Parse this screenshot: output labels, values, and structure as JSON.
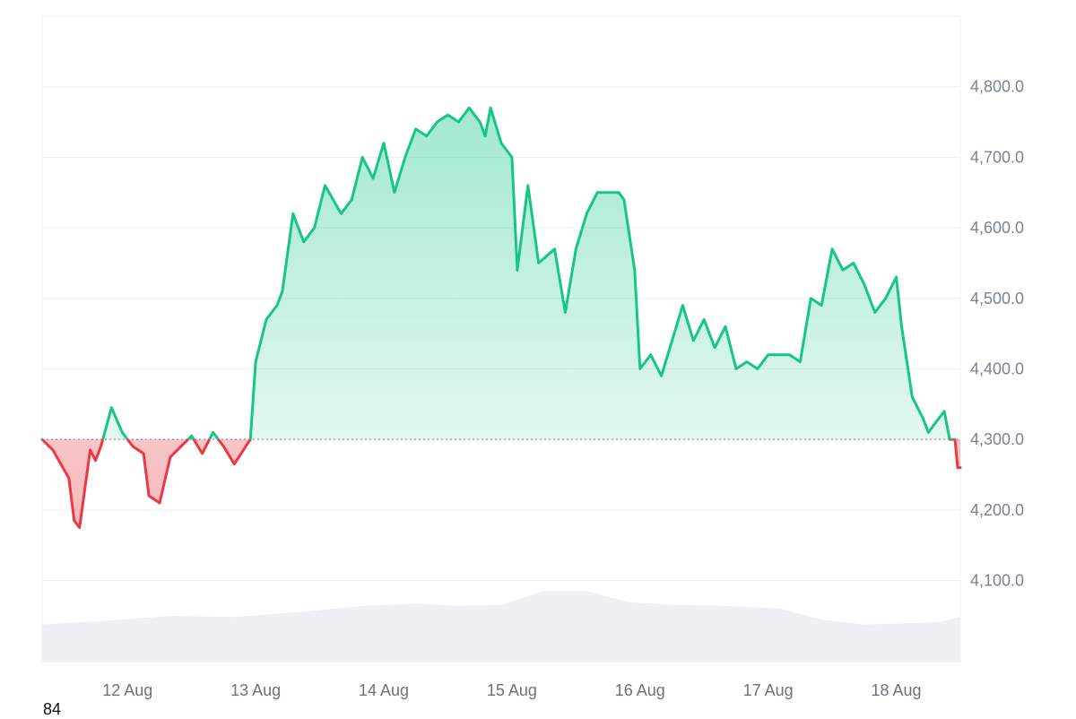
{
  "chart_data": {
    "type": "area",
    "baseline": 4300,
    "ylim": [
      3985,
      4900
    ],
    "y_ticks": [
      4100,
      4200,
      4300,
      4400,
      4500,
      4600,
      4700,
      4800
    ],
    "y_tick_labels": [
      "4,100.0",
      "4,200.0",
      "4,300.0",
      "4,400.0",
      "4,500.0",
      "4,600.0",
      "4,700.0",
      "4,800.0"
    ],
    "x_tick_labels": [
      "12 Aug",
      "13 Aug",
      "14 Aug",
      "15 Aug",
      "16 Aug",
      "17 Aug",
      "18 Aug"
    ],
    "x_range": [
      "2025-08-11T08:00",
      "2025-08-18T12:00"
    ],
    "x_ticks": [
      "2025-08-12T00:00",
      "2025-08-13T00:00",
      "2025-08-14T00:00",
      "2025-08-15T00:00",
      "2025-08-16T00:00",
      "2025-08-17T00:00",
      "2025-08-18T00:00"
    ],
    "grid": true,
    "price": {
      "x": [
        "2025-08-11T08:00",
        "2025-08-11T10:00",
        "2025-08-11T13:00",
        "2025-08-11T14:00",
        "2025-08-11T15:00",
        "2025-08-11T17:00",
        "2025-08-11T18:00",
        "2025-08-11T19:00",
        "2025-08-11T21:00",
        "2025-08-11T23:00",
        "2025-08-12T01:00",
        "2025-08-12T03:00",
        "2025-08-12T04:00",
        "2025-08-12T06:00",
        "2025-08-12T08:00",
        "2025-08-12T10:00",
        "2025-08-12T12:00",
        "2025-08-12T14:00",
        "2025-08-12T16:00",
        "2025-08-12T18:00",
        "2025-08-12T20:00",
        "2025-08-12T23:00",
        "2025-08-13T00:00",
        "2025-08-13T02:00",
        "2025-08-13T04:00",
        "2025-08-13T05:00",
        "2025-08-13T07:00",
        "2025-08-13T09:00",
        "2025-08-13T11:00",
        "2025-08-13T13:00",
        "2025-08-13T16:00",
        "2025-08-13T18:00",
        "2025-08-13T20:00",
        "2025-08-13T22:00",
        "2025-08-14T00:00",
        "2025-08-14T02:00",
        "2025-08-14T04:00",
        "2025-08-14T06:00",
        "2025-08-14T08:00",
        "2025-08-14T10:00",
        "2025-08-14T12:00",
        "2025-08-14T14:00",
        "2025-08-14T16:00",
        "2025-08-14T17:00",
        "2025-08-14T18:00",
        "2025-08-14T19:00",
        "2025-08-14T20:00",
        "2025-08-14T22:00",
        "2025-08-15T00:00",
        "2025-08-15T01:00",
        "2025-08-15T03:00",
        "2025-08-15T05:00",
        "2025-08-15T08:00",
        "2025-08-15T10:00",
        "2025-08-15T12:00",
        "2025-08-15T14:00",
        "2025-08-15T16:00",
        "2025-08-15T18:00",
        "2025-08-15T20:00",
        "2025-08-15T21:00",
        "2025-08-15T23:00",
        "2025-08-16T00:00",
        "2025-08-16T02:00",
        "2025-08-16T04:00",
        "2025-08-16T06:00",
        "2025-08-16T08:00",
        "2025-08-16T10:00",
        "2025-08-16T12:00",
        "2025-08-16T14:00",
        "2025-08-16T16:00",
        "2025-08-16T18:00",
        "2025-08-16T20:00",
        "2025-08-16T22:00",
        "2025-08-17T00:00",
        "2025-08-17T02:00",
        "2025-08-17T04:00",
        "2025-08-17T06:00",
        "2025-08-17T08:00",
        "2025-08-17T10:00",
        "2025-08-17T12:00",
        "2025-08-17T14:00",
        "2025-08-17T16:00",
        "2025-08-17T18:00",
        "2025-08-17T20:00",
        "2025-08-17T22:00",
        "2025-08-18T00:00",
        "2025-08-18T01:00",
        "2025-08-18T03:00",
        "2025-08-18T05:00",
        "2025-08-18T06:00",
        "2025-08-18T07:00",
        "2025-08-18T09:00",
        "2025-08-18T10:00",
        "2025-08-18T11:00",
        "2025-08-18T11:30",
        "2025-08-18T12:00"
      ],
      "y": [
        4300,
        4285,
        4245,
        4185,
        4175,
        4285,
        4270,
        4290,
        4345,
        4310,
        4290,
        4280,
        4220,
        4210,
        4275,
        4290,
        4305,
        4280,
        4310,
        4290,
        4265,
        4300,
        4410,
        4470,
        4490,
        4510,
        4620,
        4580,
        4600,
        4660,
        4620,
        4640,
        4700,
        4670,
        4720,
        4650,
        4700,
        4740,
        4730,
        4750,
        4760,
        4750,
        4770,
        4760,
        4750,
        4730,
        4770,
        4720,
        4700,
        4540,
        4660,
        4550,
        4570,
        4480,
        4570,
        4620,
        4650,
        4650,
        4650,
        4640,
        4540,
        4400,
        4420,
        4390,
        4440,
        4490,
        4440,
        4470,
        4430,
        4460,
        4400,
        4410,
        4400,
        4420,
        4420,
        4420,
        4410,
        4500,
        4490,
        4570,
        4540,
        4550,
        4520,
        4480,
        4500,
        4530,
        4460,
        4360,
        4330,
        4310,
        4320,
        4340,
        4300,
        4300,
        4260,
        4260
      ]
    },
    "volume": {
      "x": [
        "2025-08-11T08:00",
        "2025-08-11T23:00",
        "2025-08-12T08:00",
        "2025-08-12T20:00",
        "2025-08-13T08:00",
        "2025-08-13T20:00",
        "2025-08-14T06:00",
        "2025-08-14T14:00",
        "2025-08-14T22:00",
        "2025-08-15T06:00",
        "2025-08-15T14:00",
        "2025-08-15T22:00",
        "2025-08-16T06:00",
        "2025-08-16T16:00",
        "2025-08-17T02:00",
        "2025-08-17T10:00",
        "2025-08-17T18:00",
        "2025-08-18T02:00",
        "2025-08-18T08:00",
        "2025-08-18T12:00"
      ],
      "y": [
        0.3,
        0.34,
        0.37,
        0.36,
        0.4,
        0.45,
        0.47,
        0.45,
        0.46,
        0.57,
        0.57,
        0.48,
        0.46,
        0.45,
        0.43,
        0.34,
        0.3,
        0.31,
        0.32,
        0.36
      ]
    },
    "colors": {
      "up_line": "#16c784",
      "down_line": "#ea3943",
      "up_fill": "#16c784",
      "down_fill": "#ea3943",
      "volume": "#eef0f3",
      "grid": "#eceff3",
      "baseline": "#8a8f98"
    }
  },
  "corner_label": "84"
}
